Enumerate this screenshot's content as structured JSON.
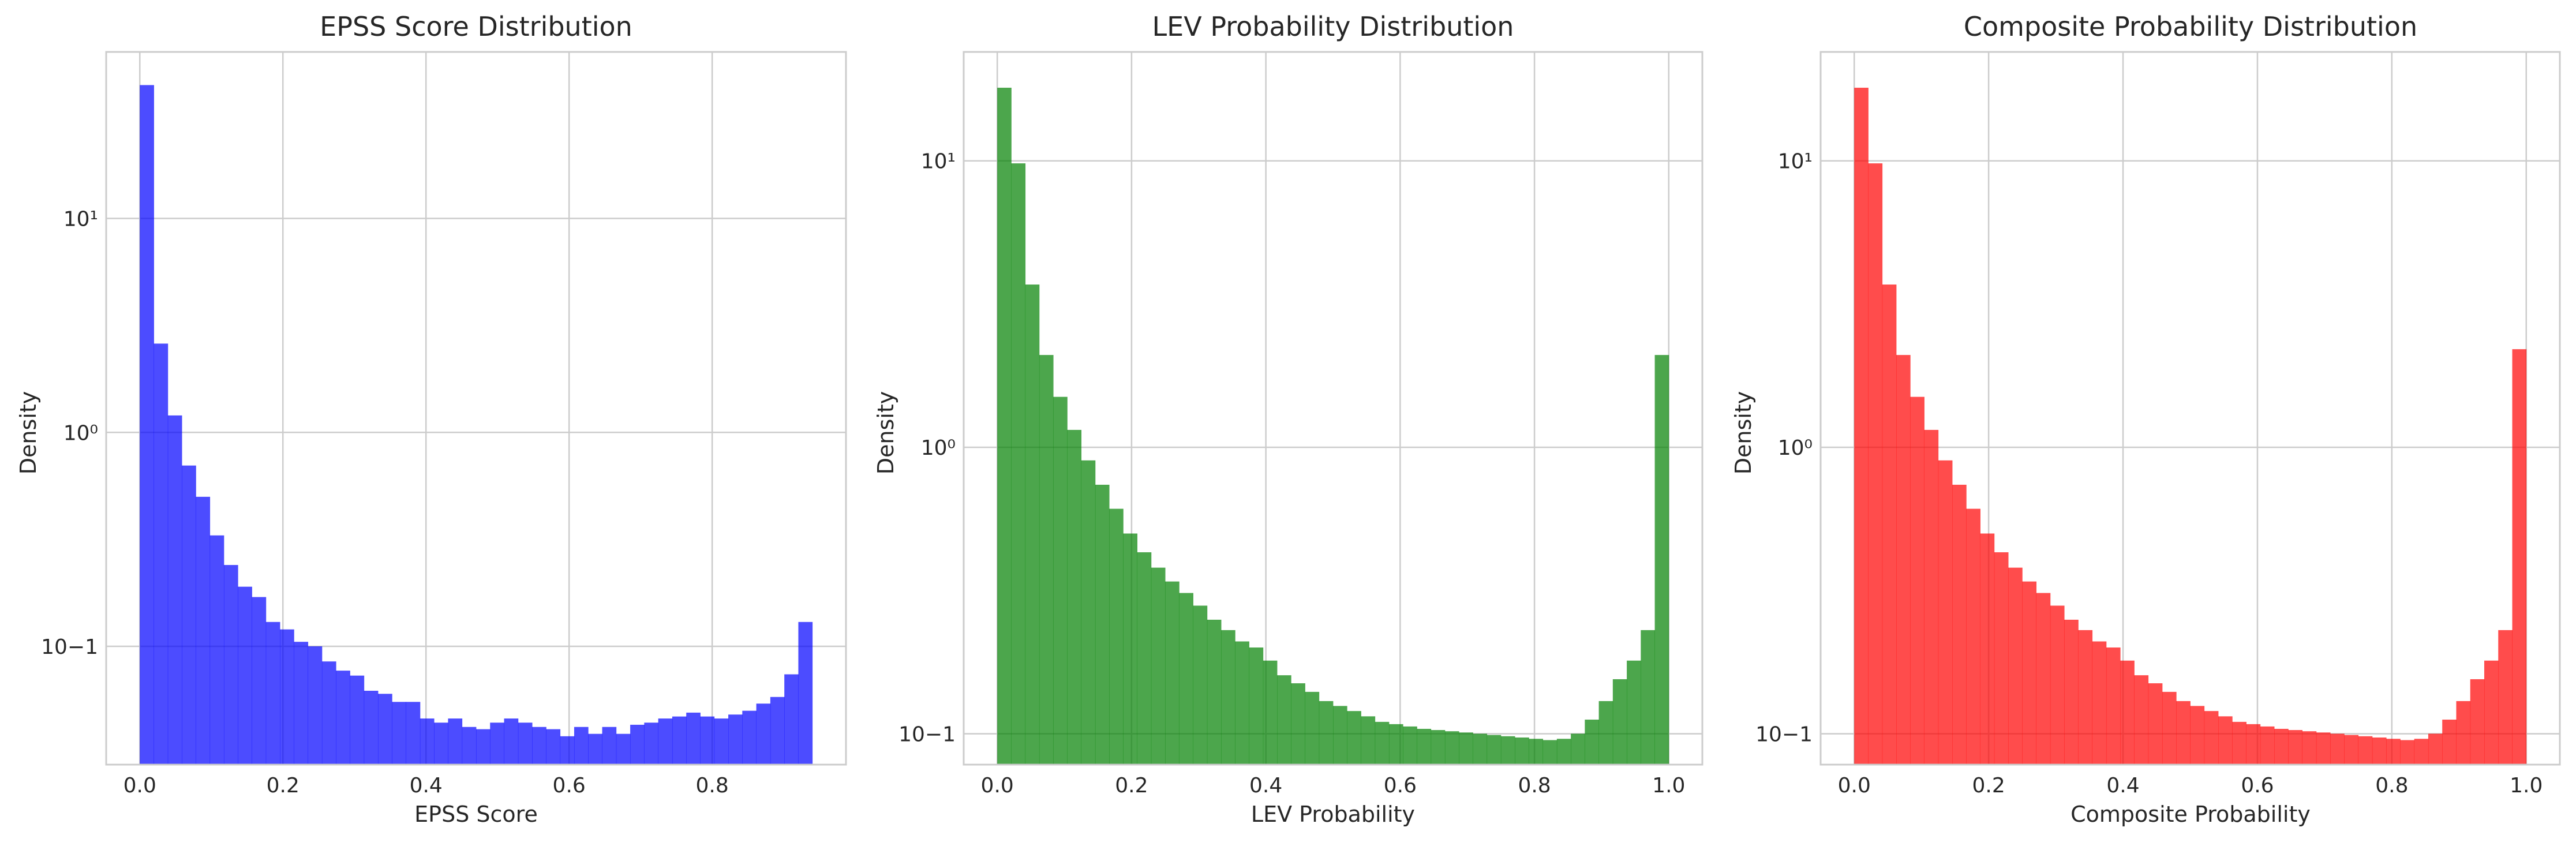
{
  "chart_data": [
    {
      "type": "bar",
      "subtype": "histogram",
      "title": "EPSS Score Distribution",
      "xlabel": "EPSS Score",
      "ylabel": "Density",
      "yscale": "log",
      "color": "#0000ff",
      "alpha": 0.7,
      "grid": true,
      "xlim": [
        -0.047,
        0.987
      ],
      "ylim": [
        0.028,
        60
      ],
      "xticks": [
        0.0,
        0.2,
        0.4,
        0.6,
        0.8
      ],
      "xtick_labels": [
        "0.0",
        "0.2",
        "0.4",
        "0.6",
        "0.8"
      ],
      "yticks": [
        0.1,
        1,
        10
      ],
      "ytick_labels": [
        "10−1",
        "10⁰",
        "10¹"
      ],
      "bin_start": 0.0,
      "bin_end": 0.94,
      "values": [
        42,
        2.6,
        1.2,
        0.7,
        0.5,
        0.33,
        0.24,
        0.19,
        0.17,
        0.13,
        0.12,
        0.105,
        0.1,
        0.085,
        0.077,
        0.073,
        0.062,
        0.06,
        0.055,
        0.055,
        0.046,
        0.044,
        0.046,
        0.042,
        0.041,
        0.044,
        0.046,
        0.044,
        0.042,
        0.041,
        0.038,
        0.042,
        0.039,
        0.042,
        0.039,
        0.043,
        0.044,
        0.046,
        0.047,
        0.049,
        0.047,
        0.046,
        0.048,
        0.05,
        0.054,
        0.058,
        0.074,
        0.13
      ]
    },
    {
      "type": "bar",
      "subtype": "histogram",
      "title": "LEV Probability Distribution",
      "xlabel": "LEV Probability",
      "ylabel": "Density",
      "yscale": "log",
      "color": "#008000",
      "alpha": 0.7,
      "grid": true,
      "xlim": [
        -0.05,
        1.05
      ],
      "ylim": [
        0.078,
        24
      ],
      "xticks": [
        0.0,
        0.2,
        0.4,
        0.6,
        0.8,
        1.0
      ],
      "xtick_labels": [
        "0.0",
        "0.2",
        "0.4",
        "0.6",
        "0.8",
        "1.0"
      ],
      "yticks": [
        0.1,
        1,
        10
      ],
      "ytick_labels": [
        "10−1",
        "10⁰",
        "10¹"
      ],
      "bin_start": 0.0,
      "bin_end": 1.0,
      "values": [
        18,
        9.8,
        3.7,
        2.1,
        1.5,
        1.15,
        0.9,
        0.74,
        0.61,
        0.5,
        0.43,
        0.38,
        0.34,
        0.31,
        0.28,
        0.25,
        0.23,
        0.21,
        0.2,
        0.18,
        0.16,
        0.15,
        0.14,
        0.13,
        0.125,
        0.12,
        0.115,
        0.11,
        0.108,
        0.106,
        0.104,
        0.103,
        0.102,
        0.101,
        0.1,
        0.099,
        0.098,
        0.097,
        0.096,
        0.095,
        0.096,
        0.1,
        0.112,
        0.13,
        0.155,
        0.18,
        0.23,
        2.1
      ]
    },
    {
      "type": "bar",
      "subtype": "histogram",
      "title": "Composite Probability Distribution",
      "xlabel": "Composite Probability",
      "ylabel": "Density",
      "yscale": "log",
      "color": "#ff0000",
      "alpha": 0.7,
      "grid": true,
      "xlim": [
        -0.05,
        1.05
      ],
      "ylim": [
        0.078,
        24
      ],
      "xticks": [
        0.0,
        0.2,
        0.4,
        0.6,
        0.8,
        1.0
      ],
      "xtick_labels": [
        "0.0",
        "0.2",
        "0.4",
        "0.6",
        "0.8",
        "1.0"
      ],
      "yticks": [
        0.1,
        1,
        10
      ],
      "ytick_labels": [
        "10−1",
        "10⁰",
        "10¹"
      ],
      "bin_start": 0.0,
      "bin_end": 1.0,
      "values": [
        18,
        9.8,
        3.7,
        2.1,
        1.5,
        1.15,
        0.9,
        0.74,
        0.61,
        0.5,
        0.43,
        0.38,
        0.34,
        0.31,
        0.28,
        0.25,
        0.23,
        0.21,
        0.2,
        0.18,
        0.16,
        0.15,
        0.14,
        0.13,
        0.125,
        0.12,
        0.115,
        0.11,
        0.108,
        0.106,
        0.104,
        0.103,
        0.102,
        0.101,
        0.1,
        0.099,
        0.098,
        0.097,
        0.096,
        0.095,
        0.096,
        0.1,
        0.112,
        0.13,
        0.155,
        0.18,
        0.23,
        2.2
      ]
    }
  ]
}
